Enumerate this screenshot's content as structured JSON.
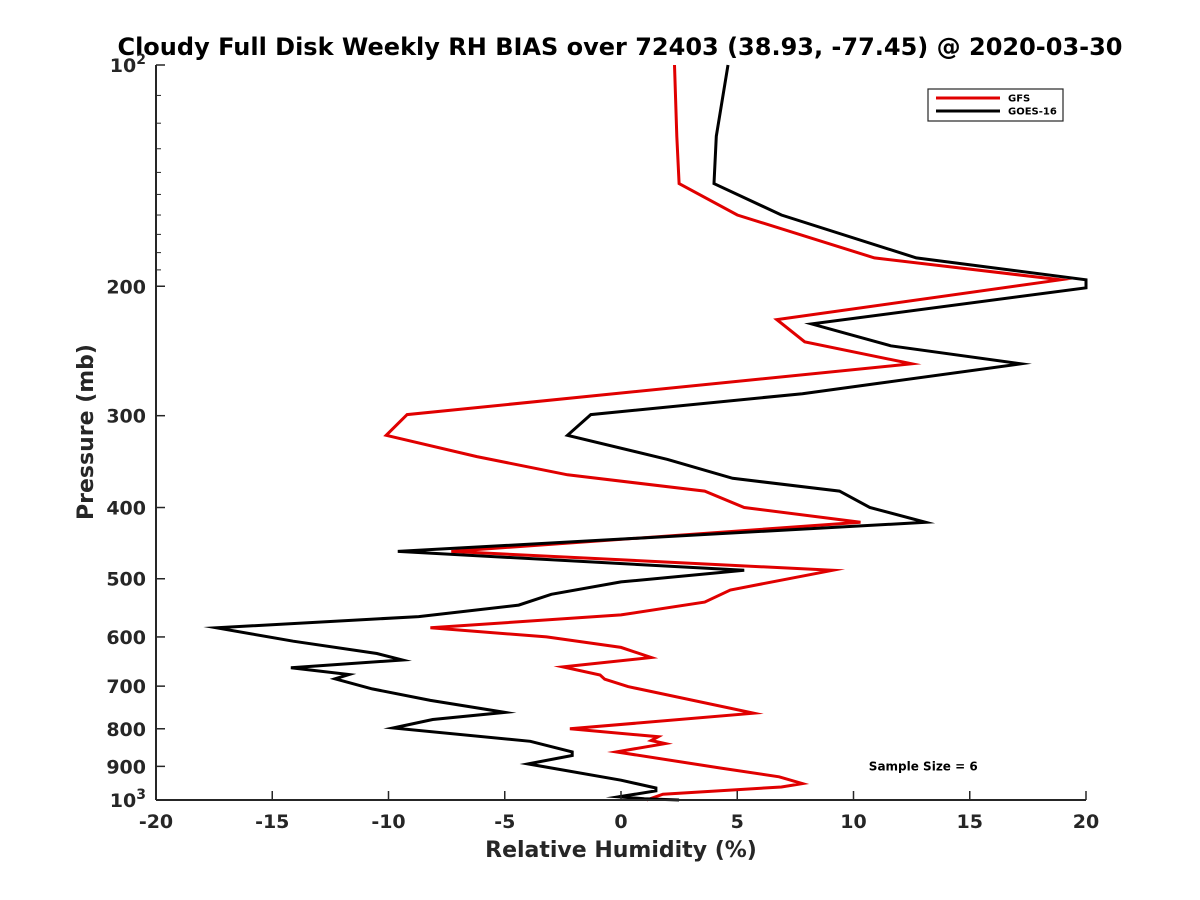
{
  "chart_data": {
    "type": "line",
    "title": "Cloudy Full Disk Weekly RH BIAS over 72403 (38.93, -77.45) @ 2020-03-30",
    "xlabel": "Relative Humidity (%)",
    "ylabel": "Pressure (mb)",
    "xlim": [
      -20,
      20
    ],
    "ylim": [
      100,
      1000
    ],
    "y_scale": "log",
    "y_reversed": true,
    "grid": false,
    "legend_position": "top-right",
    "x_ticks": [
      -20,
      -15,
      -10,
      -5,
      0,
      5,
      10,
      15,
      20
    ],
    "y_ticks": [
      {
        "value": 100,
        "base": "10",
        "exp": "2"
      },
      {
        "value": 200,
        "label": "200"
      },
      {
        "value": 300,
        "label": "300"
      },
      {
        "value": 400,
        "label": "400"
      },
      {
        "value": 500,
        "label": "500"
      },
      {
        "value": 600,
        "label": "600"
      },
      {
        "value": 700,
        "label": "700"
      },
      {
        "value": 800,
        "label": "800"
      },
      {
        "value": 900,
        "label": "900"
      },
      {
        "value": 1000,
        "base": "10",
        "exp": "3"
      }
    ],
    "series": [
      {
        "name": "GFS",
        "color": "#e00000",
        "points": [
          [
            2.3,
            100
          ],
          [
            2.4,
            125
          ],
          [
            2.5,
            145
          ],
          [
            5.0,
            160
          ],
          [
            10.9,
            183
          ],
          [
            18.9,
            196
          ],
          [
            6.7,
            222
          ],
          [
            7.9,
            238
          ],
          [
            12.5,
            255
          ],
          [
            -9.2,
            299
          ],
          [
            -10.1,
            319
          ],
          [
            -6.2,
            341
          ],
          [
            -2.3,
            361
          ],
          [
            3.6,
            380
          ],
          [
            5.3,
            400
          ],
          [
            10.3,
            419
          ],
          [
            -7.3,
            459
          ],
          [
            9.1,
            487
          ],
          [
            4.7,
            518
          ],
          [
            3.6,
            538
          ],
          [
            0.0,
            560
          ],
          [
            -8.2,
            583
          ],
          [
            -3.2,
            600
          ],
          [
            0.0,
            620
          ],
          [
            1.3,
            640
          ],
          [
            -2.5,
            659
          ],
          [
            -0.9,
            676
          ],
          [
            -0.7,
            685
          ],
          [
            0.3,
            701
          ],
          [
            5.7,
            762
          ],
          [
            -2.2,
            800
          ],
          [
            1.6,
            820
          ],
          [
            1.3,
            830
          ],
          [
            1.9,
            838
          ],
          [
            -0.2,
            860
          ],
          [
            4.3,
            905
          ],
          [
            6.8,
            930
          ],
          [
            7.8,
            950
          ],
          [
            6.9,
            960
          ],
          [
            1.8,
            982
          ],
          [
            1.1,
            1000
          ]
        ]
      },
      {
        "name": "GOES-16",
        "color": "#000000",
        "points": [
          [
            4.6,
            100
          ],
          [
            4.1,
            125
          ],
          [
            4.0,
            145
          ],
          [
            6.9,
            160
          ],
          [
            12.7,
            183
          ],
          [
            20.0,
            196
          ],
          [
            20.0,
            201
          ],
          [
            8.2,
            225
          ],
          [
            11.6,
            241
          ],
          [
            17.2,
            255
          ],
          [
            7.8,
            280
          ],
          [
            -1.3,
            299
          ],
          [
            -2.3,
            319
          ],
          [
            2.0,
            344
          ],
          [
            4.8,
            365
          ],
          [
            9.4,
            380
          ],
          [
            10.7,
            400
          ],
          [
            13.1,
            419
          ],
          [
            -9.6,
            459
          ],
          [
            5.3,
            487
          ],
          [
            0.0,
            505
          ],
          [
            -3.0,
            525
          ],
          [
            -4.4,
            543
          ],
          [
            -8.7,
            563
          ],
          [
            -17.4,
            583
          ],
          [
            -14.1,
            608
          ],
          [
            -10.5,
            632
          ],
          [
            -9.4,
            645
          ],
          [
            -14.2,
            661
          ],
          [
            -11.7,
            675
          ],
          [
            -12.3,
            684
          ],
          [
            -10.7,
            706
          ],
          [
            -8.2,
            732
          ],
          [
            -5.0,
            760
          ],
          [
            -8.1,
            777
          ],
          [
            -9.8,
            798
          ],
          [
            -3.9,
            832
          ],
          [
            -2.1,
            860
          ],
          [
            -2.1,
            870
          ],
          [
            -4.0,
            893
          ],
          [
            0.0,
            940
          ],
          [
            1.5,
            963
          ],
          [
            1.5,
            972
          ],
          [
            -0.1,
            990
          ],
          [
            1.0,
            996
          ],
          [
            2.5,
            1000
          ]
        ]
      }
    ],
    "annotations": [
      {
        "text": "Sample Size = 6",
        "x": 13.0,
        "y": 900
      }
    ]
  }
}
